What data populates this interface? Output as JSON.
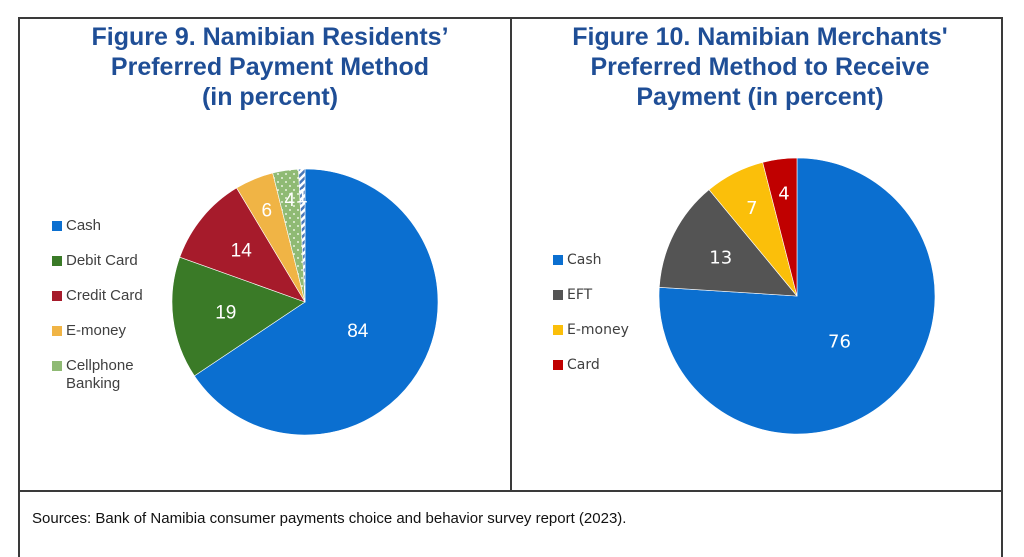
{
  "chart_data": [
    {
      "type": "pie",
      "title": "Figure 9. Namibian Residents’ Preferred Payment Method (in percent)",
      "title_lines": [
        "Figure 9. Namibian Residents’",
        "Preferred Payment Method",
        "(in percent)"
      ],
      "legend_position": "left",
      "slices": [
        {
          "label": "Cash",
          "value": 84,
          "color": "#0b6fd0",
          "pattern": "solid",
          "in_legend": true
        },
        {
          "label": "Debit Card",
          "value": 19,
          "color": "#3a7a27",
          "pattern": "solid",
          "in_legend": true
        },
        {
          "label": "Credit Card",
          "value": 14,
          "color": "#a61b2b",
          "pattern": "solid",
          "in_legend": true
        },
        {
          "label": "E-money",
          "value": 6,
          "color": "#f0b445",
          "pattern": "solid",
          "in_legend": true
        },
        {
          "label": "Cellphone Banking",
          "value": 4,
          "color": "#8fba74",
          "pattern": "dotted",
          "in_legend": true
        },
        {
          "label": "",
          "value": 1,
          "color": "#4a78b8",
          "pattern": "striped",
          "in_legend": false
        }
      ],
      "legend_labels": [
        "Cash",
        "Debit Card",
        "Credit Card",
        "E-money",
        "Cellphone\nBanking"
      ],
      "data_label_color": "#ffffff"
    },
    {
      "type": "pie",
      "title": "Figure 10. Namibian Merchants' Preferred Method to Receive Payment (in percent)",
      "title_lines": [
        "Figure 10. Namibian Merchants'",
        "Preferred Method to Receive",
        "Payment (in percent)"
      ],
      "legend_position": "left",
      "slices": [
        {
          "label": "Cash",
          "value": 76,
          "color": "#0b6fd0",
          "pattern": "solid",
          "in_legend": true
        },
        {
          "label": "EFT",
          "value": 13,
          "color": "#545454",
          "pattern": "solid",
          "in_legend": true
        },
        {
          "label": "E-money",
          "value": 7,
          "color": "#fbbf0a",
          "pattern": "solid",
          "in_legend": true
        },
        {
          "label": "Card",
          "value": 4,
          "color": "#c00000",
          "pattern": "solid",
          "in_legend": true
        }
      ],
      "legend_labels": [
        "Cash",
        "EFT",
        "E-money",
        "Card"
      ],
      "data_label_color": "#ffffff"
    }
  ],
  "source": "Sources: Bank of Namibia consumer payments choice and behavior survey report (2023)."
}
